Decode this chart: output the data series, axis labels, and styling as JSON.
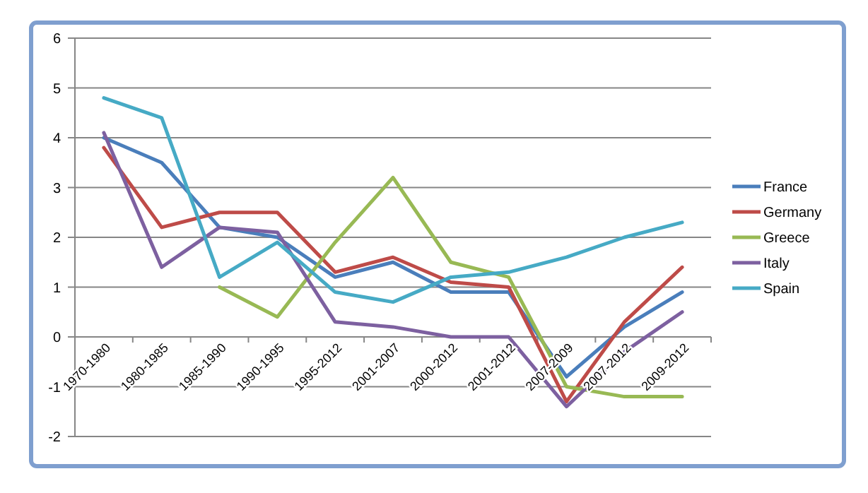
{
  "chart_data": {
    "type": "line",
    "categories": [
      "1970-1980",
      "1980-1985",
      "1985-1990",
      "1990-1995",
      "1995-2012",
      "2001-2007",
      "2000-2012",
      "2001-2012",
      "2007-2009",
      "2007-2012",
      "2009-2012"
    ],
    "series": [
      {
        "name": "France",
        "color": "#4a7ebb",
        "values": [
          4.0,
          3.5,
          2.2,
          2.0,
          1.2,
          1.5,
          0.9,
          0.9,
          -0.8,
          0.2,
          0.9
        ]
      },
      {
        "name": "Germany",
        "color": "#be4b48",
        "values": [
          3.8,
          2.2,
          2.5,
          2.5,
          1.3,
          1.6,
          1.1,
          1.0,
          -1.3,
          0.3,
          1.4
        ]
      },
      {
        "name": "Greece",
        "color": "#98b954",
        "values": [
          null,
          null,
          1.0,
          0.4,
          1.9,
          3.2,
          1.5,
          1.2,
          -1.0,
          -1.2,
          -1.2
        ]
      },
      {
        "name": "Italy",
        "color": "#7d60a0",
        "values": [
          4.1,
          1.4,
          2.2,
          2.1,
          0.3,
          0.2,
          0.0,
          0.0,
          -1.4,
          -0.3,
          0.5
        ]
      },
      {
        "name": "Spain",
        "color": "#46aac5",
        "values": [
          4.8,
          4.4,
          1.2,
          1.9,
          0.9,
          0.7,
          1.2,
          1.3,
          1.6,
          2.0,
          2.3
        ]
      }
    ],
    "ylim": [
      -2,
      6
    ],
    "yticks": [
      -2,
      -1,
      0,
      1,
      2,
      3,
      4,
      5,
      6
    ],
    "grid": "y",
    "legend": "right",
    "marker": "none",
    "line_style": "solid"
  }
}
